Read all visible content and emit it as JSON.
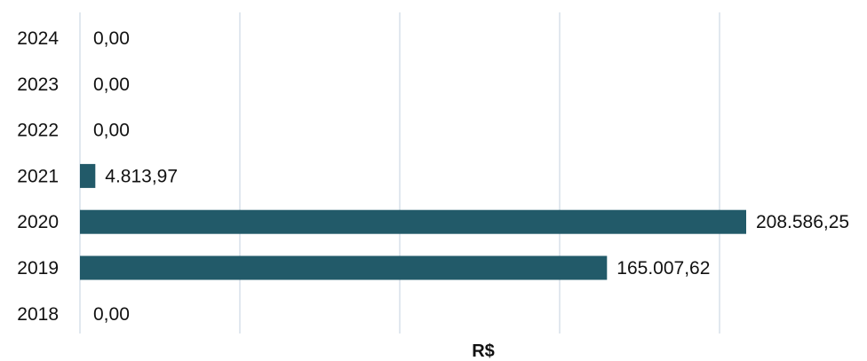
{
  "chart_data": {
    "type": "bar",
    "orientation": "horizontal",
    "categories": [
      "2024",
      "2023",
      "2022",
      "2021",
      "2020",
      "2019",
      "2018"
    ],
    "values": [
      0,
      0,
      0,
      4813.97,
      208586.25,
      165007.62,
      0
    ],
    "data_labels": [
      "0,00",
      "0,00",
      "0,00",
      "4.813,97",
      "208.586,25",
      "165.007,62",
      "0,00"
    ],
    "title": "",
    "xlabel": "R$",
    "ylabel": "",
    "xlim": [
      0,
      208586.25
    ],
    "grid": true,
    "legend": "none",
    "bar_color": "#225a69"
  }
}
